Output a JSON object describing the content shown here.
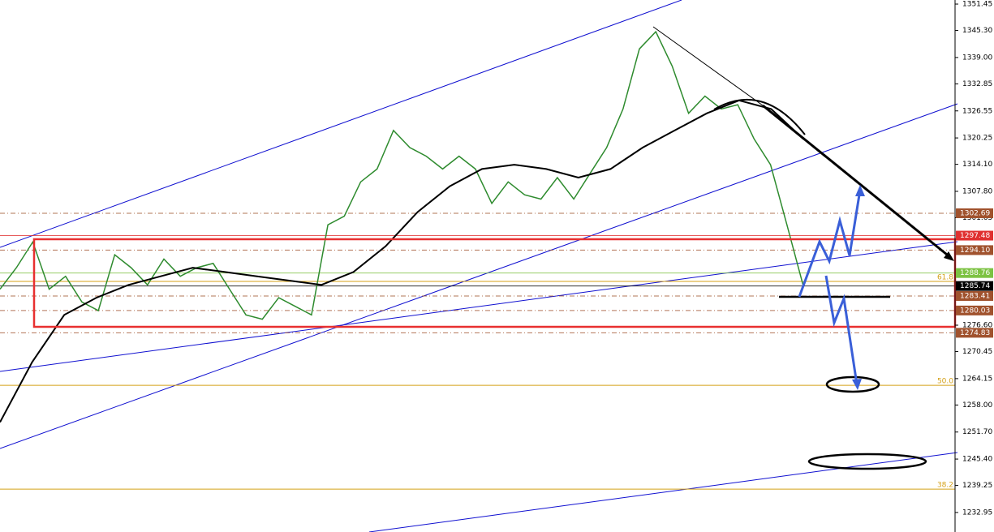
{
  "chart_data": {
    "type": "line",
    "ylim": [
      1228.4,
      1352.4
    ],
    "yticks": [
      {
        "value": 1351.45,
        "label": "1351.45"
      },
      {
        "value": 1345.3,
        "label": "1345.30"
      },
      {
        "value": 1339.0,
        "label": "1339.00"
      },
      {
        "value": 1332.85,
        "label": "1332.85"
      },
      {
        "value": 1326.55,
        "label": "1326.55"
      },
      {
        "value": 1320.25,
        "label": "1320.25"
      },
      {
        "value": 1314.1,
        "label": "1314.10"
      },
      {
        "value": 1307.8,
        "label": "1307.80"
      },
      {
        "value": 1301.65,
        "label": "1301.65"
      },
      {
        "value": 1276.6,
        "label": "1276.60"
      },
      {
        "value": 1270.45,
        "label": "1270.45"
      },
      {
        "value": 1264.15,
        "label": "1264.15"
      },
      {
        "value": 1258.0,
        "label": "1258.00"
      },
      {
        "value": 1251.7,
        "label": "1251.70"
      },
      {
        "value": 1245.4,
        "label": "1245.40"
      },
      {
        "value": 1239.25,
        "label": "1239.25"
      },
      {
        "value": 1232.95,
        "label": "1232.95"
      }
    ],
    "series": [
      {
        "color": "#2e8b2e",
        "values": [
          1285,
          1290,
          1296,
          1285,
          1288,
          1282,
          1280,
          1293,
          1290,
          1286,
          1292,
          1288,
          1290,
          1291,
          1285,
          1279,
          1278,
          1283,
          1281,
          1279,
          1300,
          1302,
          1310,
          1313,
          1322,
          1318,
          1316,
          1313,
          1316,
          1313,
          1305,
          1310,
          1307,
          1306,
          1311,
          1306,
          1312,
          1318,
          1327,
          1341,
          1345,
          1337,
          1326,
          1330,
          1327,
          1328,
          1320,
          1314,
          1300,
          1285.74
        ]
      },
      {
        "color": "#000000",
        "values": [
          1254,
          1268,
          1279,
          1283,
          1286,
          1288,
          1290,
          1289,
          1288,
          1287,
          1286,
          1289,
          1295,
          1303,
          1309,
          1313,
          1314,
          1313,
          1311,
          1313,
          1318,
          1322,
          1326,
          1329,
          1327,
          1320
        ]
      }
    ],
    "price_levels": [
      {
        "value": 1302.69,
        "label": "1302.69",
        "color": "#a0522d"
      },
      {
        "value": 1297.48,
        "label": "1297.48",
        "color": "#e03030"
      },
      {
        "value": 1294.1,
        "label": "1294.10",
        "color": "#a0522d"
      },
      {
        "value": 1288.76,
        "label": "1288.76",
        "color": "#7cc242"
      },
      {
        "value": 1285.74,
        "label": "1285.74",
        "color": "#000000"
      },
      {
        "value": 1283.41,
        "label": "1283.41",
        "color": "#a0522d"
      },
      {
        "value": 1280.03,
        "label": "1280.03",
        "color": "#a0522d"
      },
      {
        "value": 1274.83,
        "label": "1274.83",
        "color": "#a0522d"
      }
    ],
    "fib_levels": [
      {
        "label": "61.8",
        "value": 1286.8
      },
      {
        "label": "50.0",
        "value": 1262.6
      },
      {
        "label": "38.2",
        "value": 1238.4
      }
    ]
  }
}
